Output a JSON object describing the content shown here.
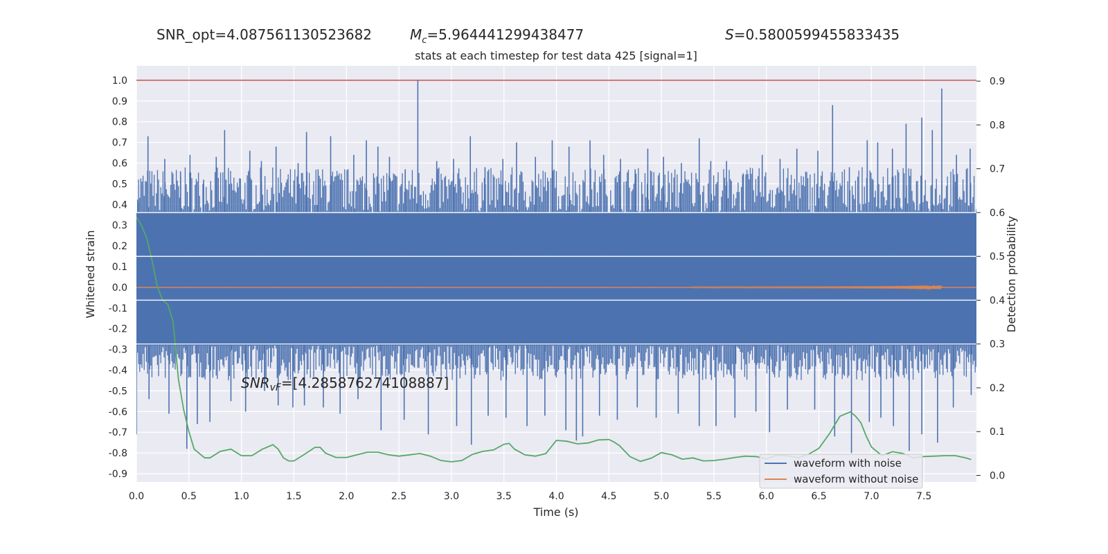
{
  "header": {
    "snr_opt": "SNR_opt=4.087561130523682",
    "mc_value": "=5.964441299438477",
    "s_value": "=0.5800599455833435"
  },
  "chart_data": {
    "type": "line",
    "title": "stats at each timestep for test data 425 [signal=1]",
    "xlabel": "Time (s)",
    "ylabel": "Whitened strain",
    "y2label": "Detection probability",
    "xlim": [
      0.0,
      8.0
    ],
    "ylim": [
      -0.94,
      1.07
    ],
    "y2lim": [
      -0.015,
      0.935
    ],
    "xticks": [
      0.0,
      0.5,
      1.0,
      1.5,
      2.0,
      2.5,
      3.0,
      3.5,
      4.0,
      4.5,
      5.0,
      5.5,
      6.0,
      6.5,
      7.0,
      7.5
    ],
    "yticks": [
      -0.9,
      -0.8,
      -0.7,
      -0.6,
      -0.5,
      -0.4,
      -0.3,
      -0.2,
      -0.1,
      0.0,
      0.1,
      0.2,
      0.3,
      0.4,
      0.5,
      0.6,
      0.7,
      0.8,
      0.9,
      1.0
    ],
    "y2ticks": [
      0.0,
      0.1,
      0.2,
      0.3,
      0.4,
      0.5,
      0.6,
      0.7,
      0.8,
      0.9
    ],
    "grid": true,
    "legend_position": "lower-right",
    "annotation": "=[4.285876274108887]",
    "threshold": {
      "y": 1.0,
      "color": "#c44e52"
    },
    "series": [
      {
        "name": "waveform with noise",
        "color": "#4c72b0",
        "axis": "left",
        "band": {
          "from": -0.28,
          "to": 0.36
        },
        "spikes_up": [
          [
            0.02,
            0.41
          ],
          [
            0.11,
            0.73
          ],
          [
            0.27,
            0.62
          ],
          [
            0.42,
            0.56
          ],
          [
            0.51,
            0.64
          ],
          [
            0.64,
            0.52
          ],
          [
            0.76,
            0.63
          ],
          [
            0.84,
            0.76
          ],
          [
            1.08,
            0.66
          ],
          [
            1.19,
            0.61
          ],
          [
            1.33,
            0.68
          ],
          [
            1.54,
            0.6
          ],
          [
            1.62,
            0.75
          ],
          [
            1.73,
            0.57
          ],
          [
            1.85,
            0.73
          ],
          [
            2.07,
            0.64
          ],
          [
            2.19,
            0.71
          ],
          [
            2.3,
            0.68
          ],
          [
            2.41,
            0.63
          ],
          [
            2.56,
            0.57
          ],
          [
            2.68,
            1.0
          ],
          [
            2.86,
            0.61
          ],
          [
            3.02,
            0.62
          ],
          [
            3.18,
            0.73
          ],
          [
            3.32,
            0.58
          ],
          [
            3.49,
            0.62
          ],
          [
            3.62,
            0.7
          ],
          [
            3.8,
            0.63
          ],
          [
            3.96,
            0.71
          ],
          [
            4.12,
            0.68
          ],
          [
            4.32,
            0.71
          ],
          [
            4.45,
            0.64
          ],
          [
            4.61,
            0.62
          ],
          [
            4.75,
            0.57
          ],
          [
            4.87,
            0.67
          ],
          [
            5.02,
            0.63
          ],
          [
            5.19,
            0.6
          ],
          [
            5.36,
            0.72
          ],
          [
            5.47,
            0.61
          ],
          [
            5.62,
            0.61
          ],
          [
            5.78,
            0.55
          ],
          [
            5.96,
            0.64
          ],
          [
            6.13,
            0.62
          ],
          [
            6.29,
            0.67
          ],
          [
            6.49,
            0.66
          ],
          [
            6.63,
            0.88
          ],
          [
            6.79,
            0.58
          ],
          [
            6.96,
            0.71
          ],
          [
            7.06,
            0.7
          ],
          [
            7.2,
            0.67
          ],
          [
            7.33,
            0.79
          ],
          [
            7.48,
            0.82
          ],
          [
            7.58,
            0.76
          ],
          [
            7.67,
            0.96
          ],
          [
            7.81,
            0.64
          ],
          [
            7.94,
            0.67
          ]
        ],
        "spikes_down": [
          [
            0.0,
            -0.71
          ],
          [
            0.12,
            -0.54
          ],
          [
            0.31,
            -0.61
          ],
          [
            0.48,
            -0.78
          ],
          [
            0.58,
            -0.66
          ],
          [
            0.7,
            -0.65
          ],
          [
            0.9,
            -0.55
          ],
          [
            1.04,
            -0.6
          ],
          [
            1.22,
            -0.5
          ],
          [
            1.35,
            -0.57
          ],
          [
            1.49,
            -0.58
          ],
          [
            1.6,
            -0.57
          ],
          [
            1.78,
            -0.58
          ],
          [
            1.94,
            -0.61
          ],
          [
            2.11,
            -0.54
          ],
          [
            2.33,
            -0.69
          ],
          [
            2.55,
            -0.64
          ],
          [
            2.78,
            -0.71
          ],
          [
            3.05,
            -0.67
          ],
          [
            3.19,
            -0.76
          ],
          [
            3.35,
            -0.62
          ],
          [
            3.52,
            -0.63
          ],
          [
            3.72,
            -0.67
          ],
          [
            3.89,
            -0.62
          ],
          [
            4.09,
            -0.69
          ],
          [
            4.19,
            -0.74
          ],
          [
            4.25,
            -0.72
          ],
          [
            4.41,
            -0.62
          ],
          [
            4.58,
            -0.64
          ],
          [
            4.77,
            -0.58
          ],
          [
            4.95,
            -0.63
          ],
          [
            5.16,
            -0.61
          ],
          [
            5.36,
            -0.67
          ],
          [
            5.52,
            -0.67
          ],
          [
            5.7,
            -0.63
          ],
          [
            5.9,
            -0.6
          ],
          [
            6.03,
            -0.7
          ],
          [
            6.2,
            -0.59
          ],
          [
            6.46,
            -0.59
          ],
          [
            6.65,
            -0.72
          ],
          [
            6.81,
            -0.8
          ],
          [
            6.98,
            -0.65
          ],
          [
            7.09,
            -0.63
          ],
          [
            7.21,
            -0.67
          ],
          [
            7.36,
            -0.79
          ],
          [
            7.48,
            -0.71
          ],
          [
            7.63,
            -0.75
          ],
          [
            7.78,
            -0.58
          ],
          [
            7.95,
            -0.52
          ]
        ]
      },
      {
        "name": "waveform without noise",
        "color": "#dd8452",
        "axis": "left",
        "chirp": {
          "start": 5.3,
          "end": 7.67,
          "peak_amplitude": 0.17
        }
      },
      {
        "axis": "right",
        "color": "#55a868",
        "x": [
          0.0,
          0.05,
          0.1,
          0.15,
          0.2,
          0.25,
          0.3,
          0.35,
          0.4,
          0.45,
          0.5,
          0.55,
          0.6,
          0.65,
          0.7,
          0.8,
          0.9,
          1.0,
          1.1,
          1.2,
          1.3,
          1.35,
          1.4,
          1.45,
          1.5,
          1.6,
          1.7,
          1.75,
          1.8,
          1.9,
          2.0,
          2.1,
          2.2,
          2.3,
          2.4,
          2.5,
          2.6,
          2.7,
          2.8,
          2.9,
          3.0,
          3.1,
          3.2,
          3.3,
          3.4,
          3.5,
          3.55,
          3.6,
          3.7,
          3.8,
          3.9,
          4.0,
          4.1,
          4.2,
          4.3,
          4.4,
          4.5,
          4.55,
          4.6,
          4.7,
          4.8,
          4.9,
          5.0,
          5.1,
          5.2,
          5.3,
          5.4,
          5.5,
          5.6,
          5.7,
          5.8,
          5.9,
          6.0,
          6.1,
          6.2,
          6.3,
          6.4,
          6.5,
          6.6,
          6.7,
          6.75,
          6.8,
          6.85,
          6.9,
          6.95,
          7.0,
          7.1,
          7.2,
          7.3,
          7.4,
          7.5,
          7.6,
          7.7,
          7.8,
          7.9,
          7.95
        ],
        "values": [
          0.59,
          0.57,
          0.54,
          0.49,
          0.43,
          0.4,
          0.39,
          0.35,
          0.22,
          0.15,
          0.1,
          0.06,
          0.05,
          0.04,
          0.04,
          0.055,
          0.06,
          0.045,
          0.045,
          0.06,
          0.07,
          0.06,
          0.04,
          0.033,
          0.033,
          0.048,
          0.064,
          0.064,
          0.051,
          0.041,
          0.041,
          0.047,
          0.053,
          0.053,
          0.047,
          0.044,
          0.047,
          0.05,
          0.044,
          0.034,
          0.031,
          0.034,
          0.048,
          0.055,
          0.058,
          0.071,
          0.073,
          0.06,
          0.047,
          0.044,
          0.05,
          0.08,
          0.078,
          0.072,
          0.074,
          0.081,
          0.082,
          0.076,
          0.068,
          0.043,
          0.032,
          0.039,
          0.052,
          0.047,
          0.037,
          0.04,
          0.033,
          0.034,
          0.037,
          0.041,
          0.044,
          0.043,
          0.038,
          0.046,
          0.045,
          0.04,
          0.048,
          0.062,
          0.095,
          0.135,
          0.14,
          0.145,
          0.135,
          0.12,
          0.09,
          0.065,
          0.045,
          0.054,
          0.05,
          0.04,
          0.043,
          0.044,
          0.045,
          0.045,
          0.04,
          0.036
        ]
      }
    ]
  }
}
